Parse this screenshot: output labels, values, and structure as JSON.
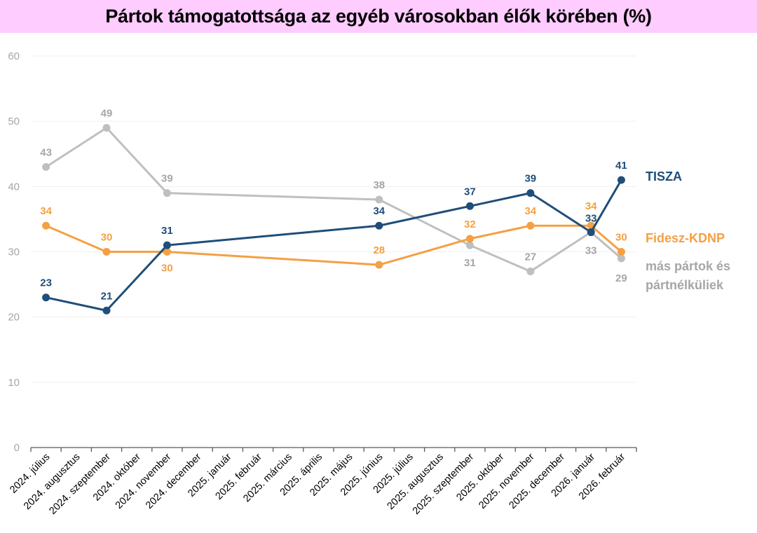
{
  "chart_data": {
    "type": "line",
    "title": "Pártok támogatottsága az egyéb városokban élők körében (%)",
    "xlabel": "",
    "ylabel": "",
    "ylim": [
      0,
      60
    ],
    "yticks": [
      0,
      10,
      20,
      30,
      40,
      50,
      60
    ],
    "grid": true,
    "legend": "right (inline labels)",
    "categories": [
      "2024. július",
      "2024. augusztus",
      "2024. szeptember",
      "2024. október",
      "2024. november",
      "2024. december",
      "2025. január",
      "2025. február",
      "2025. március",
      "2025. április",
      "2025. május",
      "2025. június",
      "2025. július",
      "2025. augusztus",
      "2025. szeptember",
      "2025. október",
      "2025. november",
      "2025. december",
      "2026. január",
      "2026. február"
    ],
    "series": [
      {
        "name": "TISZA",
        "color": "#1f4e79",
        "values": [
          23,
          null,
          21,
          null,
          31,
          null,
          null,
          null,
          null,
          null,
          null,
          34,
          null,
          null,
          37,
          null,
          39,
          null,
          33,
          41
        ]
      },
      {
        "name": "Fidesz-KDNP",
        "color": "#f4a043",
        "values": [
          34,
          null,
          30,
          null,
          30,
          null,
          null,
          null,
          null,
          null,
          null,
          28,
          null,
          null,
          32,
          null,
          34,
          null,
          34,
          30
        ]
      },
      {
        "name": "más pártok és pártnélküliek",
        "name_lines": [
          "más pártok és",
          "pártnélküliek"
        ],
        "color": "#bfbfbf",
        "label_color": "#a6a6a6",
        "values": [
          43,
          null,
          49,
          null,
          39,
          null,
          null,
          null,
          null,
          null,
          null,
          38,
          null,
          null,
          31,
          null,
          27,
          null,
          33,
          29
        ]
      }
    ]
  }
}
